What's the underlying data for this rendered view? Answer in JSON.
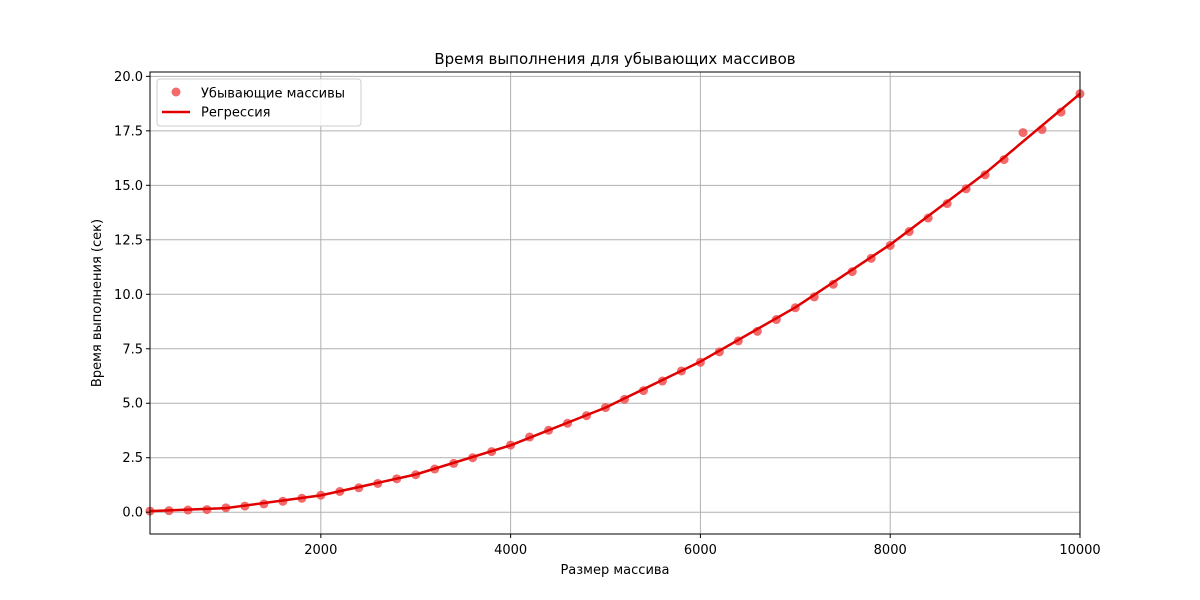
{
  "chart_data": {
    "type": "scatter",
    "title": "Время выполнения для убывающих массивов",
    "xlabel": "Размер массива",
    "ylabel": "Время выполнения (сек)",
    "xlim": [
      200,
      10000
    ],
    "ylim": [
      -1.0,
      20.2
    ],
    "xticks": [
      2000,
      4000,
      6000,
      8000,
      10000
    ],
    "yticks": [
      0.0,
      2.5,
      5.0,
      7.5,
      10.0,
      12.5,
      15.0,
      17.5,
      20.0
    ],
    "xtick_labels": [
      "2000",
      "4000",
      "6000",
      "8000",
      "10000"
    ],
    "ytick_labels": [
      "0.0",
      "2.5",
      "5.0",
      "7.5",
      "10.0",
      "12.5",
      "15.0",
      "17.5",
      "20.0"
    ],
    "grid": true,
    "legend_position": "top-left",
    "series": [
      {
        "name": "Убывающие массивы",
        "kind": "scatter",
        "color": "#f05050",
        "x": [
          200,
          400,
          600,
          800,
          1000,
          1200,
          1400,
          1600,
          1800,
          2000,
          2200,
          2400,
          2600,
          2800,
          3000,
          3200,
          3400,
          3600,
          3800,
          4000,
          4200,
          4400,
          4600,
          4800,
          5000,
          5200,
          5400,
          5600,
          5800,
          6000,
          6200,
          6400,
          6600,
          6800,
          7000,
          7200,
          7400,
          7600,
          7800,
          8000,
          8200,
          8400,
          8600,
          8800,
          9000,
          9200,
          9400,
          9600,
          9800,
          10000
        ],
        "y": [
          0.05,
          0.07,
          0.1,
          0.12,
          0.2,
          0.28,
          0.38,
          0.5,
          0.64,
          0.78,
          0.95,
          1.12,
          1.32,
          1.53,
          1.72,
          1.98,
          2.24,
          2.5,
          2.78,
          3.08,
          3.45,
          3.76,
          4.08,
          4.43,
          4.8,
          5.18,
          5.58,
          6.02,
          6.48,
          6.88,
          7.36,
          7.86,
          8.3,
          8.84,
          9.38,
          9.88,
          10.46,
          11.04,
          11.65,
          12.24,
          12.88,
          13.5,
          14.16,
          14.84,
          15.48,
          16.18,
          17.42,
          17.56,
          18.36,
          19.2
        ]
      },
      {
        "name": "Регрессия",
        "kind": "line",
        "color": "#e00000",
        "x": [
          200,
          1000,
          2000,
          3000,
          4000,
          5000,
          6000,
          7000,
          8000,
          9000,
          10000
        ],
        "y": [
          0.05,
          0.19,
          0.77,
          1.73,
          3.07,
          4.8,
          6.91,
          9.4,
          12.28,
          15.55,
          19.2
        ]
      }
    ]
  }
}
